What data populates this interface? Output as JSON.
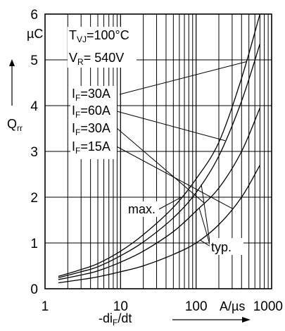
{
  "chart_data": {
    "type": "line",
    "x_scale": "log",
    "xlim": [
      1,
      1000
    ],
    "ylim": [
      0,
      6
    ],
    "grid": true,
    "x_ticks": [
      {
        "value": 1,
        "label": "1"
      },
      {
        "value": 10,
        "label": "10"
      },
      {
        "value": 100,
        "label": "100"
      },
      {
        "value": 1000,
        "label": "1000"
      }
    ],
    "y_ticks": [
      {
        "value": 0,
        "label": "0"
      },
      {
        "value": 1,
        "label": "1"
      },
      {
        "value": 2,
        "label": "2"
      },
      {
        "value": 3,
        "label": "3"
      },
      {
        "value": 4,
        "label": "4"
      },
      {
        "value": 5,
        "label": "5"
      },
      {
        "value": 6,
        "label": "6"
      }
    ],
    "x_label": {
      "prefix": "-di",
      "sub": "F",
      "suffix": "/dt",
      "unit": "A/µs"
    },
    "y_label": {
      "main": "Q",
      "sub": "rr",
      "unit": "µC"
    },
    "conditions": [
      {
        "main": "T",
        "sub": "VJ",
        "rest": "=100°C"
      },
      {
        "main": "V",
        "sub": "R",
        "rest": "= 540V"
      }
    ],
    "series": [
      {
        "name": "I_F=30A max.",
        "label": {
          "main": "I",
          "sub": "F",
          "rest": "=30A"
        },
        "x": [
          1.5,
          3,
          5,
          10,
          20,
          50,
          100,
          200,
          400,
          700
        ],
        "y": [
          0.27,
          0.42,
          0.55,
          0.82,
          1.18,
          1.78,
          2.4,
          3.2,
          4.6,
          6.0
        ]
      },
      {
        "name": "I_F=60A typ.",
        "label": {
          "main": "I",
          "sub": "F",
          "rest": "=60A"
        },
        "x": [
          1.5,
          3,
          5,
          10,
          20,
          50,
          100,
          200,
          400,
          700
        ],
        "y": [
          0.24,
          0.37,
          0.48,
          0.72,
          1.02,
          1.55,
          2.1,
          2.9,
          4.1,
          5.35
        ]
      },
      {
        "name": "I_F=30A typ.",
        "label": {
          "main": "I",
          "sub": "F",
          "rest": "=30A"
        },
        "x": [
          1.5,
          3,
          5,
          10,
          20,
          50,
          100,
          200,
          400,
          700
        ],
        "y": [
          0.2,
          0.3,
          0.39,
          0.58,
          0.82,
          1.25,
          1.7,
          2.2,
          3.0,
          3.95
        ]
      },
      {
        "name": "I_F=15A typ.",
        "label": {
          "main": "I",
          "sub": "F",
          "rest": "=15A"
        },
        "x": [
          1.5,
          3,
          5,
          10,
          20,
          50,
          100,
          200,
          400,
          700
        ],
        "y": [
          0.13,
          0.2,
          0.26,
          0.37,
          0.5,
          0.75,
          1.0,
          1.4,
          2.0,
          2.7
        ]
      }
    ],
    "annotations": [
      "max.",
      "typ."
    ]
  }
}
